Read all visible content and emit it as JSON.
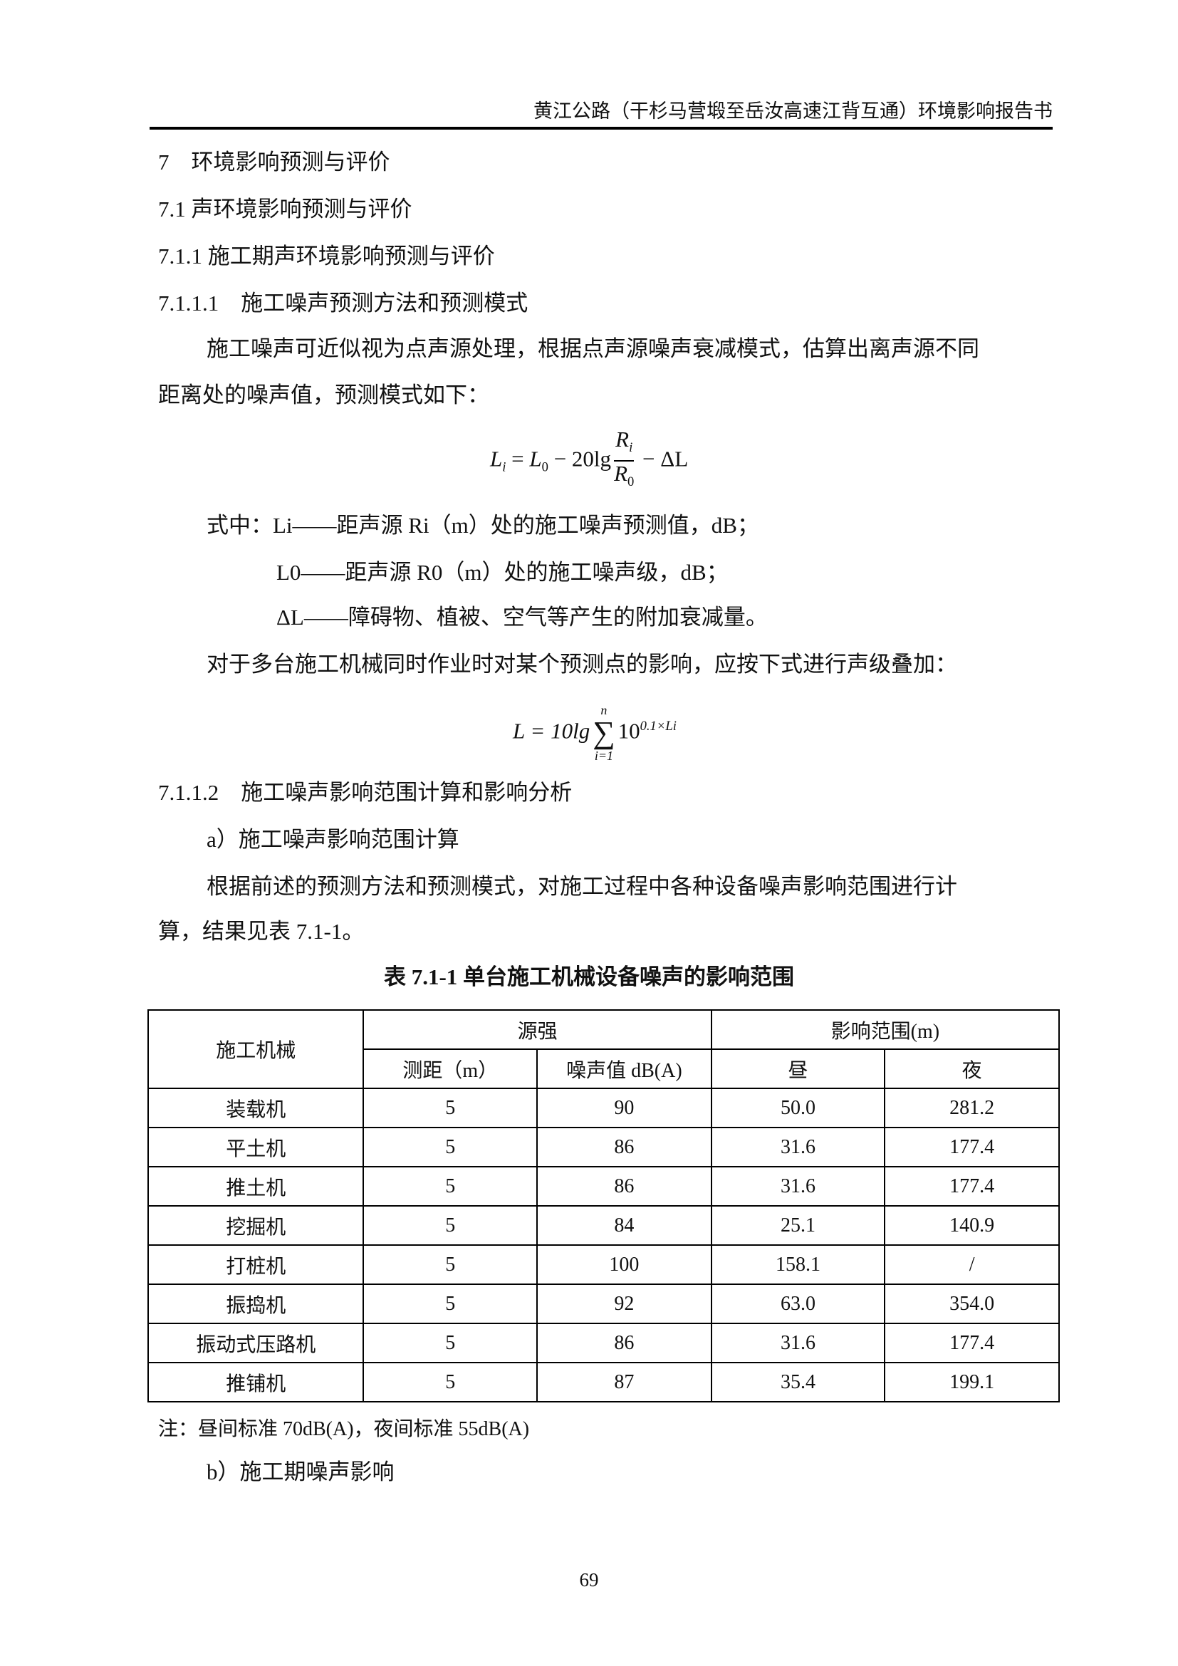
{
  "header": {
    "title": "黄江公路（干杉马营塅至岳汝高速江背互通）环境影响报告书"
  },
  "headings": {
    "h1": "7　环境影响预测与评价",
    "h2": "7.1 声环境影响预测与评价",
    "h3": "7.1.1 施工期声环境影响预测与评价",
    "h4a": "7.1.1.1　施工噪声预测方法和预测模式",
    "h4b": "7.1.1.2　施工噪声影响范围计算和影响分析"
  },
  "body": {
    "p1a": "施工噪声可近似视为点声源处理，根据点声源噪声衰减模式，估算出离声源不同",
    "p1b": "距离处的噪声值，预测模式如下：",
    "formula1": {
      "lhs": "L",
      "lhs_sub": "i",
      "eq": " = ",
      "l0": "L",
      "l0_sub": "0",
      "mid": " − 20lg",
      "num": "R",
      "num_sub": "i",
      "den": "R",
      "den_sub": "0",
      "tail": " − ΔL"
    },
    "def1": "式中：Li——距声源 Ri（m）处的施工噪声预测值，dB；",
    "def2": "L0——距声源 R0（m）处的施工噪声级，dB；",
    "def3": "ΔL——障碍物、植被、空气等产生的附加衰减量。",
    "p2": "对于多台施工机械同时作业时对某个预测点的影响，应按下式进行声级叠加：",
    "formula2": {
      "text": "L = 10lg",
      "sum_top": "n",
      "sum": "∑",
      "sum_bottom": "i=1",
      "base": "10",
      "exp": "0.1×Li"
    },
    "a_label": "a）施工噪声影响范围计算",
    "p3a": "根据前述的预测方法和预测模式，对施工过程中各种设备噪声影响范围进行计",
    "p3b": "算，结果见表 7.1-1。",
    "b_label": "b）施工期噪声影响"
  },
  "table": {
    "caption": "表 7.1-1  单台施工机械设备噪声的影响范围",
    "h_machine": "施工机械",
    "h_source": "源强",
    "h_range": "影响范围(m)",
    "h_dist": "测距（m）",
    "h_noise": "噪声值 dB(A)",
    "h_day": "昼",
    "h_night": "夜",
    "rows": [
      [
        "装载机",
        "5",
        "90",
        "50.0",
        "281.2"
      ],
      [
        "平土机",
        "5",
        "86",
        "31.6",
        "177.4"
      ],
      [
        "推土机",
        "5",
        "86",
        "31.6",
        "177.4"
      ],
      [
        "挖掘机",
        "5",
        "84",
        "25.1",
        "140.9"
      ],
      [
        "打桩机",
        "5",
        "100",
        "158.1",
        "/"
      ],
      [
        "振捣机",
        "5",
        "92",
        "63.0",
        "354.0"
      ],
      [
        "振动式压路机",
        "5",
        "86",
        "31.6",
        "177.4"
      ],
      [
        "推铺机",
        "5",
        "87",
        "35.4",
        "199.1"
      ]
    ],
    "note": "注：昼间标准 70dB(A)，夜间标准 55dB(A)"
  },
  "footer": {
    "page": "69"
  }
}
